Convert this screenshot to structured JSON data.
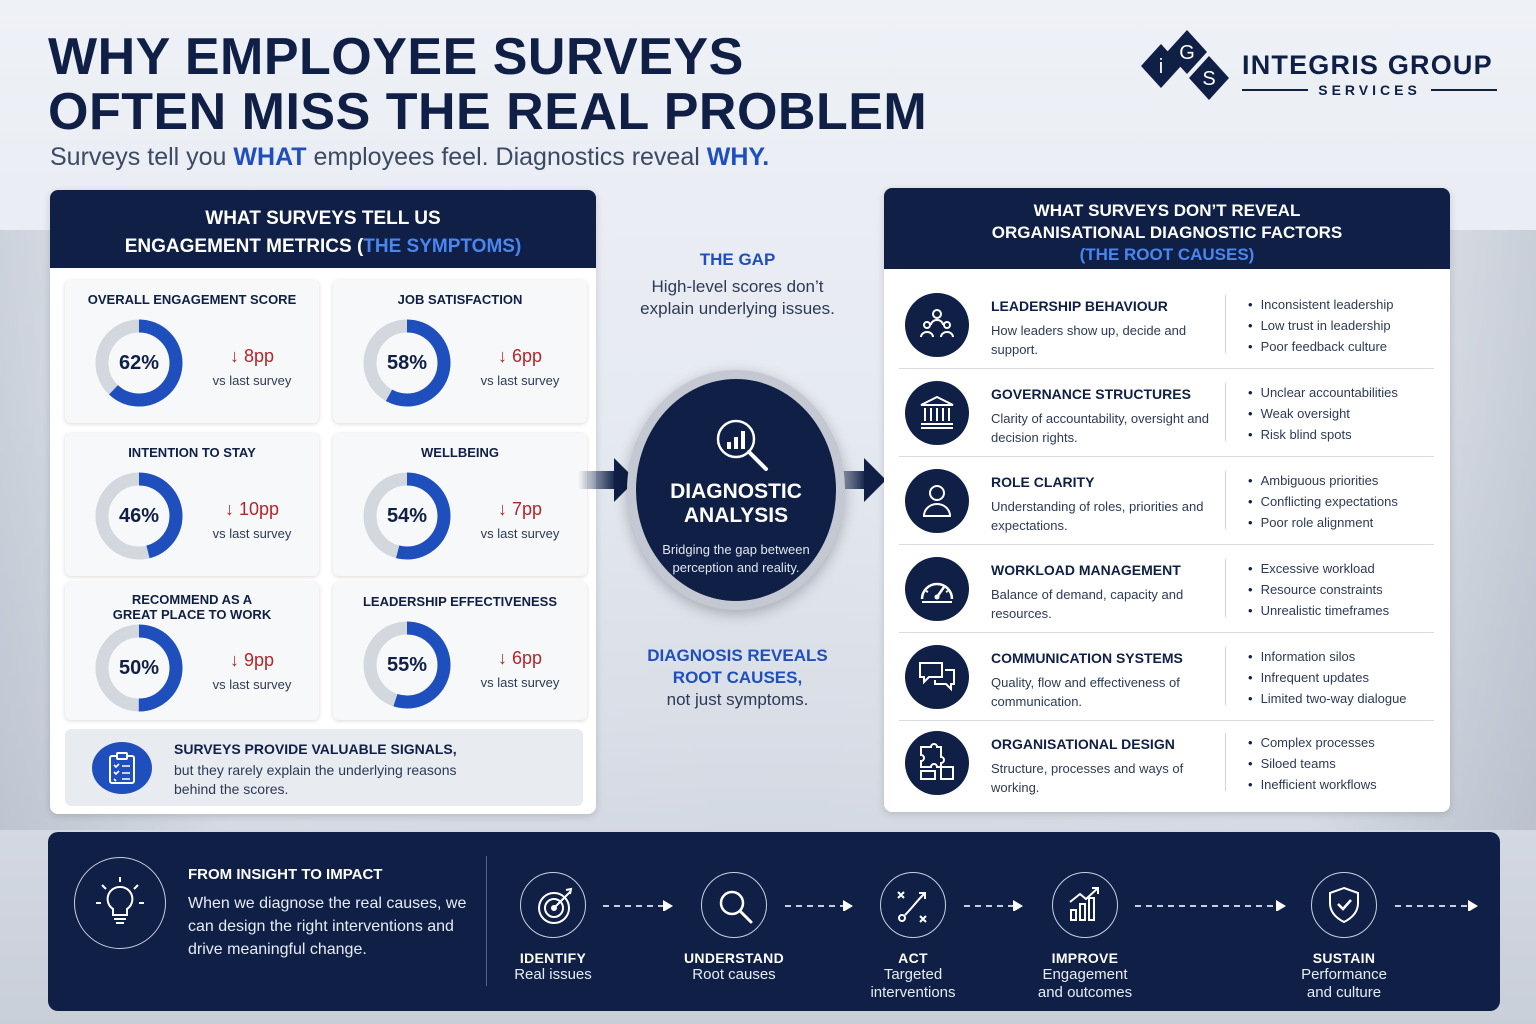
{
  "header": {
    "title_line1": "WHY EMPLOYEE SURVEYS",
    "title_line2": "OFTEN MISS THE REAL PROBLEM",
    "sub_a": "Surveys tell you ",
    "sub_what": "WHAT",
    "sub_b": " employees feel. Diagnostics reveal ",
    "sub_why": "WHY."
  },
  "logo": {
    "letters": [
      "i",
      "G",
      "S"
    ],
    "name": "INTEGRIS GROUP",
    "sub": "SERVICES"
  },
  "left": {
    "title_line1": "WHAT SURVEYS TELL US",
    "title_line2a": "ENGAGEMENT METRICS (",
    "title_line2b": "THE SYMPTOMS)",
    "metrics": [
      {
        "label": "OVERALL ENGAGEMENT SCORE",
        "value": "62%",
        "pct": 62,
        "delta": "8pp",
        "vs": "vs last survey"
      },
      {
        "label": "JOB SATISFACTION",
        "value": "58%",
        "pct": 58,
        "delta": "6pp",
        "vs": "vs last survey"
      },
      {
        "label": "INTENTION TO STAY",
        "value": "46%",
        "pct": 46,
        "delta": "10pp",
        "vs": "vs last survey"
      },
      {
        "label": "WELLBEING",
        "value": "54%",
        "pct": 54,
        "delta": "7pp",
        "vs": "vs last survey"
      },
      {
        "label": "RECOMMEND AS A",
        "label2": "GREAT PLACE TO WORK",
        "value": "50%",
        "pct": 50,
        "delta": "9pp",
        "vs": "vs last survey"
      },
      {
        "label": "LEADERSHIP EFFECTIVENESS",
        "value": "55%",
        "pct": 55,
        "delta": "6pp",
        "vs": "vs last survey"
      }
    ],
    "signal_title": "SURVEYS PROVIDE VALUABLE SIGNALS,",
    "signal_body": "but they rarely explain the underlying reasons behind the scores."
  },
  "center": {
    "gap_title": "THE GAP",
    "gap_body": "High-level scores don’t explain underlying issues.",
    "circle_title1": "DIAGNOSTIC",
    "circle_title2": "ANALYSIS",
    "circle_body": "Bridging the gap between perception and reality.",
    "diag_title1": "DIAGNOSIS REVEALS",
    "diag_title2": "ROOT CAUSES,",
    "diag_body": "not just symptoms."
  },
  "right": {
    "title_line1": "WHAT SURVEYS DON’T REVEAL",
    "title_line2": "ORGANISATIONAL DIAGNOSTIC FACTORS",
    "title_line3": "(THE ROOT CAUSES)",
    "factors": [
      {
        "icon": "leadership-icon",
        "title": "LEADERSHIP BEHAVIOUR",
        "body": "How leaders show up, decide and support.",
        "items": [
          "Inconsistent leadership",
          "Low trust in leadership",
          "Poor feedback culture"
        ]
      },
      {
        "icon": "building-icon",
        "title": "GOVERNANCE STRUCTURES",
        "body": "Clarity of accountability, oversight and decision rights.",
        "items": [
          "Unclear accountabilities",
          "Weak oversight",
          "Risk blind spots"
        ]
      },
      {
        "icon": "person-icon",
        "title": "ROLE CLARITY",
        "body": "Understanding of roles, priorities and expectations.",
        "items": [
          "Ambiguous priorities",
          "Conflicting expectations",
          "Poor role alignment"
        ]
      },
      {
        "icon": "gauge-icon",
        "title": "WORKLOAD MANAGEMENT",
        "body": "Balance of demand, capacity and resources.",
        "items": [
          "Excessive workload",
          "Resource constraints",
          "Unrealistic timeframes"
        ]
      },
      {
        "icon": "chat-icon",
        "title": "COMMUNICATION SYSTEMS",
        "body": "Quality, flow and effectiveness of communication.",
        "items": [
          "Information silos",
          "Infrequent updates",
          "Limited two-way dialogue"
        ]
      },
      {
        "icon": "puzzle-icon",
        "title": "ORGANISATIONAL DESIGN",
        "body": "Structure, processes and ways of working.",
        "items": [
          "Complex processes",
          "Siloed teams",
          "Inefficient workflows"
        ]
      }
    ]
  },
  "bottom": {
    "title": "FROM INSIGHT TO IMPACT",
    "body": "When we diagnose the real causes, we can design the right interventions and drive meaningful change.",
    "steps": [
      {
        "icon": "target-icon",
        "title": "IDENTIFY",
        "body1": "Real issues",
        "body2": ""
      },
      {
        "icon": "magnifier-icon",
        "title": "UNDERSTAND",
        "body1": "Root causes",
        "body2": ""
      },
      {
        "icon": "strategy-icon",
        "title": "ACT",
        "body1": "Targeted",
        "body2": "interventions"
      },
      {
        "icon": "growth-chart-icon",
        "title": "IMPROVE",
        "body1": "Engagement",
        "body2": "and outcomes"
      },
      {
        "icon": "shield-check-icon",
        "title": "SUSTAIN",
        "body1": "Performance",
        "body2": "and culture"
      }
    ]
  },
  "colors": {
    "navy": "#0f1f45",
    "blue": "#1f4fbd",
    "light_blue": "#4a86ef",
    "red": "#b3262b",
    "donut_track": "#d3d7de"
  }
}
